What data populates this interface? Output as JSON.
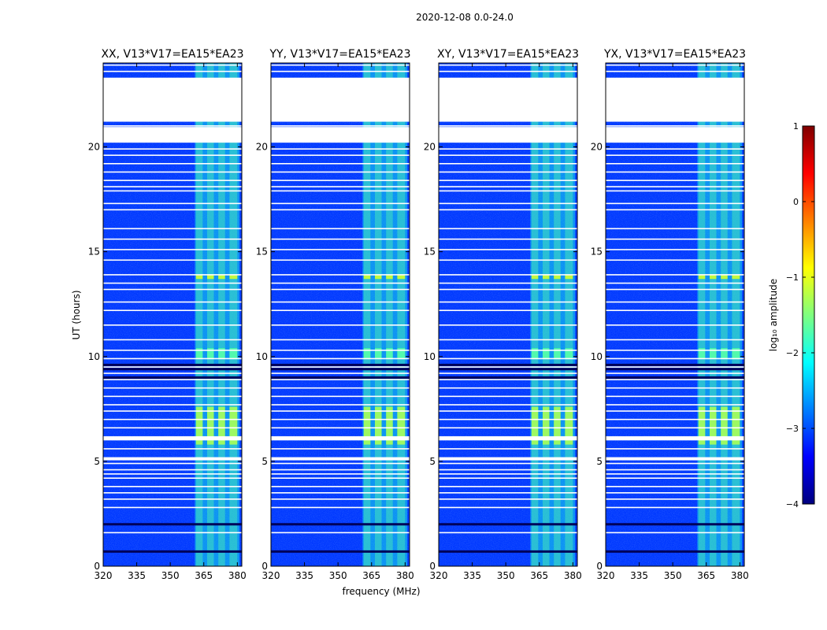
{
  "figure": {
    "suptitle": "2020-12-08 0.0-24.0"
  },
  "chart_data": {
    "type": "heatmap",
    "ylabel": "UT (hours)",
    "xlabel": "frequency (MHz)",
    "xlim": [
      320,
      382
    ],
    "ylim": [
      0,
      24
    ],
    "x_ticks": [
      320,
      335,
      350,
      365,
      380
    ],
    "y_ticks": [
      0,
      5,
      10,
      15,
      20
    ],
    "panels": [
      {
        "title": "XX, V13*V17=EA15*EA23",
        "pol": "XX"
      },
      {
        "title": "YY, V13*V17=EA15*EA23",
        "pol": "YY"
      },
      {
        "title": "XY, V13*V17=EA15*EA23",
        "pol": "XY"
      },
      {
        "title": "YX, V13*V17=EA15*EA23",
        "pol": "YX"
      }
    ],
    "colorbar": {
      "label": "log₁₀ amplitude",
      "range": [
        -4,
        1
      ],
      "ticks": [
        -4,
        -3,
        -2,
        -1,
        0,
        1
      ],
      "colormap": "jet",
      "colors": [
        "#00007f",
        "#0000ff",
        "#007fff",
        "#00ffff",
        "#7fff7f",
        "#ffff00",
        "#ff7f00",
        "#ff0000",
        "#7f0000"
      ]
    },
    "background_level": -3.1,
    "rfi_band": {
      "freq_range": [
        361,
        381
      ],
      "level": -2.0
    },
    "rfi_channels": [
      {
        "freq_range": [
          361.5,
          364.5
        ]
      },
      {
        "freq_range": [
          366.5,
          369.5
        ]
      },
      {
        "freq_range": [
          371.5,
          374.5
        ]
      },
      {
        "freq_range": [
          376.5,
          380.0
        ]
      }
    ],
    "strong_rfi_intervals": [
      {
        "time_range": [
          5.8,
          7.6
        ],
        "level": -1.3
      },
      {
        "time_range": [
          9.9,
          10.4
        ],
        "level": -1.7
      },
      {
        "time_range": [
          13.7,
          13.9
        ],
        "level": -1.1
      }
    ],
    "flagged_intervals_hours": [
      [
        21.2,
        23.3
      ],
      [
        20.2,
        20.95
      ],
      [
        6.0,
        6.2
      ],
      [
        5.05,
        5.2
      ]
    ],
    "flag_lines_hours": [
      23.6,
      23.9,
      21.5,
      21.0,
      19.9,
      19.6,
      19.2,
      18.8,
      18.4,
      18.1,
      17.9,
      17.3,
      17.0,
      16.1,
      15.6,
      15.1,
      14.6,
      13.9,
      13.5,
      13.2,
      12.6,
      12.2,
      11.5,
      10.8,
      10.3,
      9.9,
      9.5,
      9.2,
      8.9,
      8.5,
      8.1,
      7.7,
      7.4,
      7.0,
      6.6,
      5.6,
      4.9,
      4.6,
      4.4,
      4.2,
      3.8,
      3.5,
      3.2,
      2.8,
      1.6
    ],
    "dark_lines_hours": [
      9.6,
      9.4,
      9.0,
      2.0,
      0.7
    ]
  }
}
